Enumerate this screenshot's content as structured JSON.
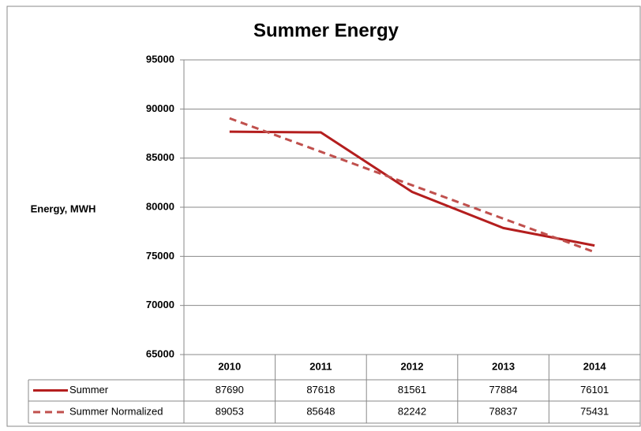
{
  "chart_data": {
    "type": "line",
    "title": "Summer Energy",
    "y_label": "Energy, MWH",
    "categories": [
      "2010",
      "2011",
      "2012",
      "2013",
      "2014"
    ],
    "series": [
      {
        "name": "Summer",
        "color": "#b41e1e",
        "dash": false,
        "values": [
          87690,
          87618,
          81561,
          77884,
          76101
        ]
      },
      {
        "name": "Summer Normalized",
        "color": "#c0504d",
        "dash": true,
        "values": [
          89053,
          85648,
          82242,
          78837,
          75431
        ]
      }
    ],
    "ylim": [
      65000,
      95000
    ],
    "yticks": [
      65000,
      70000,
      75000,
      80000,
      85000,
      90000,
      95000
    ],
    "grid": true,
    "data_table": true
  }
}
